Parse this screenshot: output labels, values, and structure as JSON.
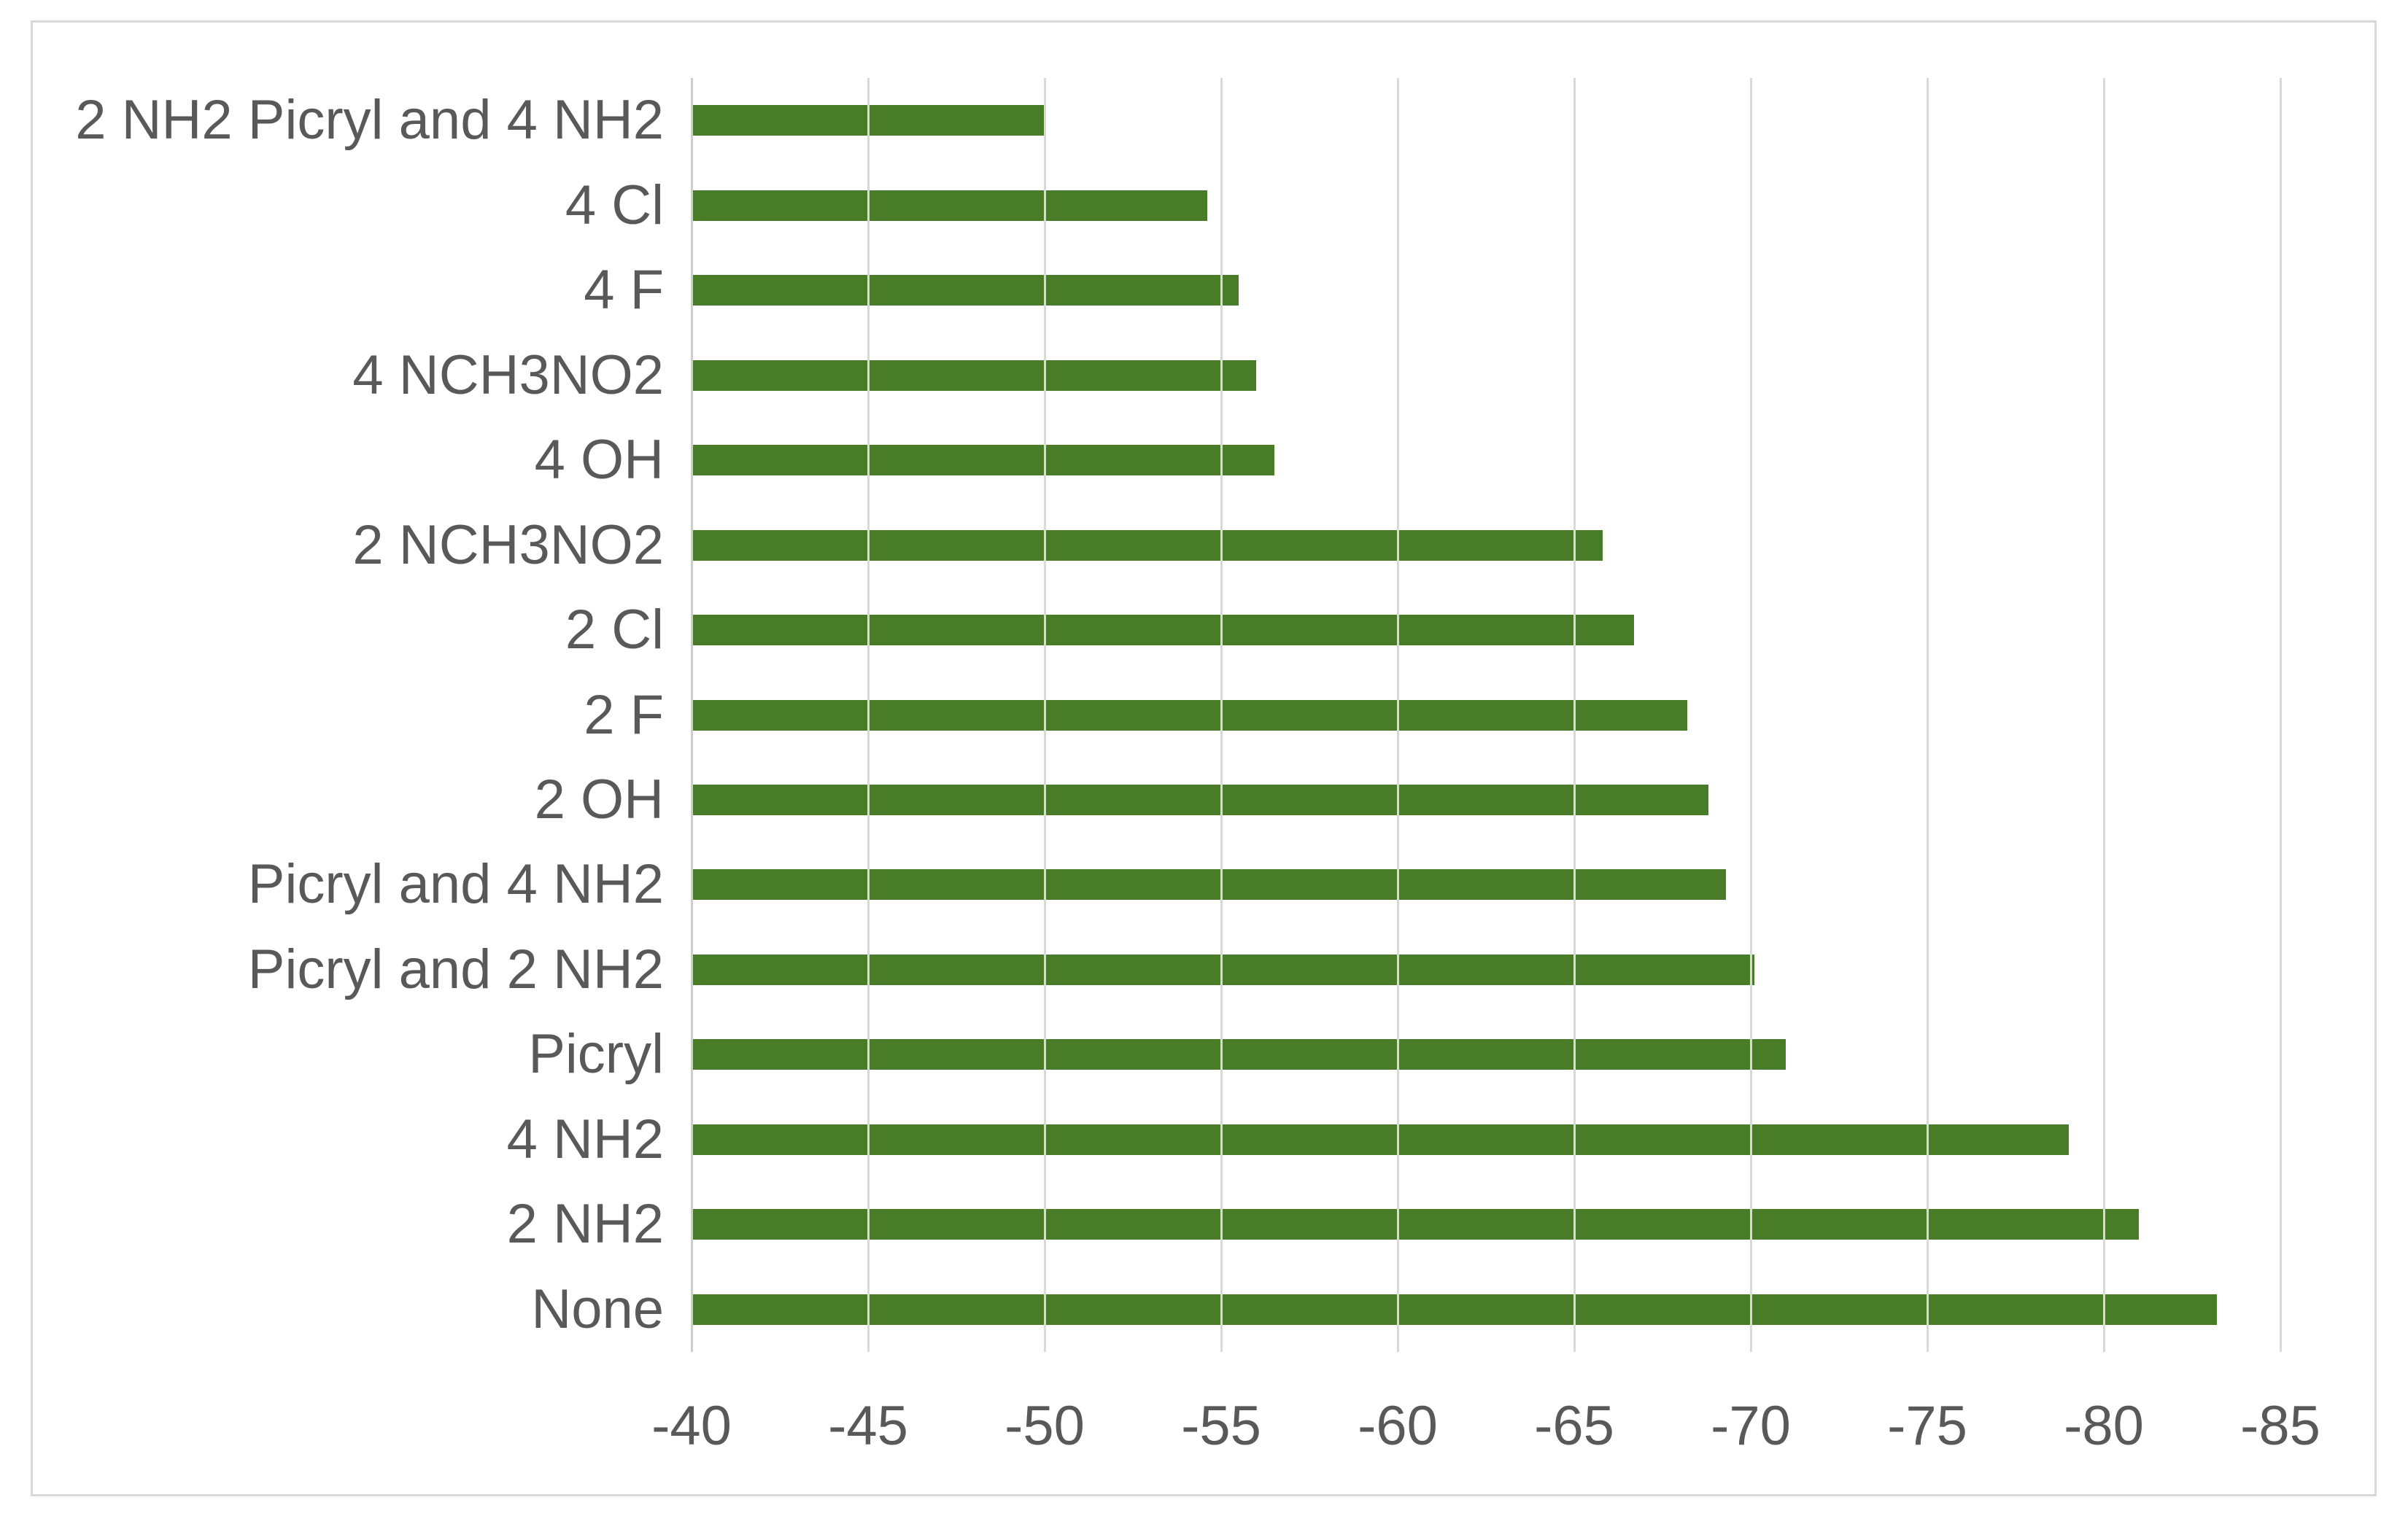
{
  "chart_data": {
    "type": "bar",
    "orientation": "horizontal",
    "title": "",
    "xlabel": "",
    "ylabel": "",
    "categories": [
      "2 NH2 Picryl and 4 NH2",
      "4 Cl",
      "4 F",
      "4 NCH3NO2",
      "4 OH",
      "2 NCH3NO2",
      "2 Cl",
      "2 F",
      "2 OH",
      "Picryl and 4 NH2",
      "Picryl and 2 NH2",
      "Picryl",
      "4 NH2",
      "2 NH2",
      "None"
    ],
    "values": [
      -50,
      -54.6,
      -55.5,
      -56,
      -56.5,
      -65.8,
      -66.7,
      -68.2,
      -68.8,
      -69.3,
      -70.1,
      -71,
      -79,
      -81,
      -83.2
    ],
    "x_axis": {
      "min": -40,
      "max": -85,
      "reversed": true,
      "tick_interval": 5,
      "tick_labels": [
        "-40",
        "-45",
        "-50",
        "-55",
        "-60",
        "-65",
        "-70",
        "-75",
        "-80",
        "-85"
      ]
    },
    "legend": "none",
    "grid": "vertical",
    "colors": {
      "bar": "#487c28",
      "gridline": "#d9d9d9",
      "axis_line": "#cdcdcd",
      "text": "#595959",
      "frame_border": "#d9d9d9",
      "background": "#ffffff"
    }
  }
}
